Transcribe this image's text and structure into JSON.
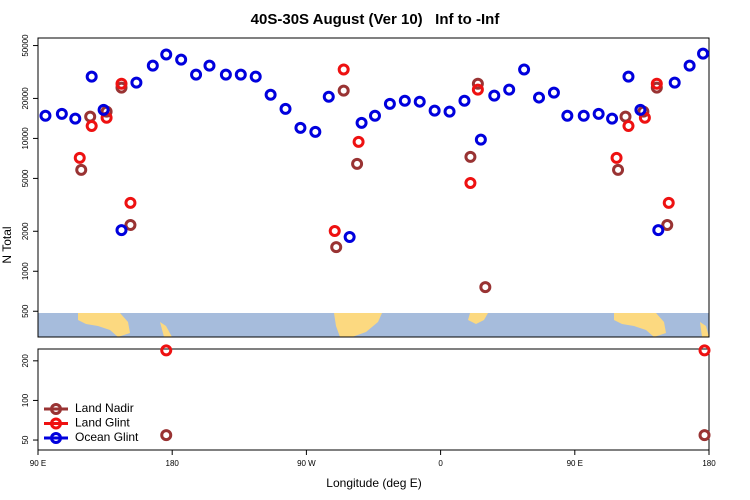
{
  "chart_data": [
    {
      "type": "scatter",
      "title": "40S-30S August (Ver 10)   Inf to -Inf",
      "y_label": "N Total",
      "log_y": true,
      "xlim": [
        90,
        540
      ],
      "ylim": [
        320,
        57000
      ],
      "yticks": [
        500,
        1000,
        2000,
        5000,
        10000,
        20000,
        50000
      ],
      "legend": "lower left",
      "series": [
        {
          "name": "Land Nadir",
          "color": "#993333",
          "x": [
            119,
            125,
            136,
            146,
            152,
            290,
            295,
            304,
            380,
            385,
            390,
            479,
            484,
            496,
            505,
            512
          ],
          "values": [
            5800,
            14600,
            15900,
            24100,
            2230,
            1520,
            22900,
            6430,
            7260,
            25800,
            760,
            5800,
            14600,
            15900,
            24100,
            2230
          ]
        },
        {
          "name": "Land Glint",
          "color": "#ee1111",
          "x": [
            118,
            126,
            136,
            146,
            152,
            289,
            295,
            305,
            380,
            385,
            478,
            486,
            497,
            505,
            513
          ],
          "values": [
            7140,
            12400,
            14300,
            25800,
            3270,
            2010,
            33000,
            9420,
            4620,
            23300,
            7140,
            12400,
            14300,
            25800,
            3270
          ]
        },
        {
          "name": "Ocean Glint",
          "color": "#0000dd",
          "x": [
            95,
            106,
            115,
            126,
            134,
            146,
            156,
            167,
            176,
            186,
            196,
            205,
            216,
            226,
            236,
            246,
            256,
            266,
            276,
            285,
            299,
            307,
            316,
            326,
            336,
            346,
            356,
            366,
            376,
            387,
            396,
            406,
            416,
            426,
            436,
            445,
            456,
            466,
            475,
            486,
            494,
            506,
            517,
            527,
            536
          ],
          "values": [
            14800,
            15300,
            14100,
            29200,
            16400,
            2040,
            26300,
            35300,
            42800,
            39200,
            30200,
            35300,
            30200,
            30200,
            29200,
            21300,
            16700,
            12000,
            11200,
            20600,
            1810,
            13100,
            14800,
            18200,
            19200,
            18900,
            16200,
            15900,
            19200,
            9800,
            21000,
            23300,
            33000,
            20300,
            22100,
            14800,
            14800,
            15300,
            14100,
            29200,
            16400,
            2040,
            26300,
            35300,
            43500
          ]
        }
      ]
    },
    {
      "type": "scatter",
      "x_label": "Longitude (deg E)",
      "log_y": true,
      "xlim": [
        90,
        540
      ],
      "ylim": [
        42,
        246
      ],
      "yticks": [
        50,
        100,
        200
      ],
      "xticks": [
        {
          "value": 90,
          "label": "90 E"
        },
        180,
        {
          "value": 270,
          "label": "90 W"
        },
        {
          "value": 360,
          "label": "0"
        },
        {
          "value": 450,
          "label": "90 E"
        },
        {
          "value": 540,
          "label": "180"
        }
      ],
      "series": [
        {
          "color": "#993333",
          "x": [
            176,
            537
          ],
          "values": [
            54.5,
            54.5
          ]
        },
        {
          "color": "#ee1111",
          "x": [
            176,
            537
          ],
          "values": [
            240,
            240
          ]
        }
      ]
    }
  ]
}
